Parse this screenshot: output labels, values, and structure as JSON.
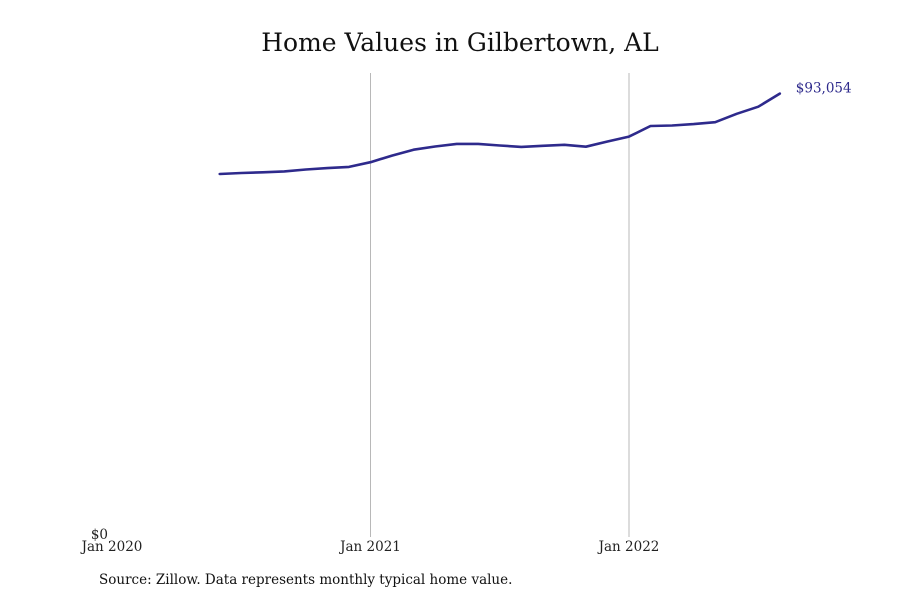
{
  "chart_data": {
    "type": "line",
    "title": "Home Values in Gilbertown, AL",
    "xlabel": "",
    "ylabel": "",
    "x_ticks": [
      "Jan 2020",
      "Jan 2021",
      "Jan 2022"
    ],
    "y_ticks": [
      "$0"
    ],
    "ylim": [
      0,
      97000
    ],
    "grid": "vertical lines at Jan 2021 and Jan 2022",
    "legend": "none",
    "end_label": "$93,054",
    "color": "#2e2a8c",
    "series": [
      {
        "x": [
          "2020-06",
          "2020-07",
          "2020-08",
          "2020-09",
          "2020-10",
          "2020-11",
          "2020-12",
          "2021-01",
          "2021-02",
          "2021-03",
          "2021-04",
          "2021-05",
          "2021-06",
          "2021-07",
          "2021-08",
          "2021-09",
          "2021-10",
          "2021-11",
          "2021-12",
          "2022-01",
          "2022-02",
          "2022-03",
          "2022-04",
          "2022-05",
          "2022-06",
          "2022-07",
          "2022-08"
        ],
        "values": [
          75950,
          76150,
          76300,
          76500,
          76900,
          77200,
          77450,
          78450,
          79850,
          81100,
          81800,
          82350,
          82350,
          82000,
          81700,
          81950,
          82150,
          81750,
          82850,
          83900,
          86150,
          86250,
          86550,
          86950,
          88750,
          90250,
          93054
        ]
      }
    ]
  },
  "source": "Source: Zillow. Data represents monthly typical home value."
}
